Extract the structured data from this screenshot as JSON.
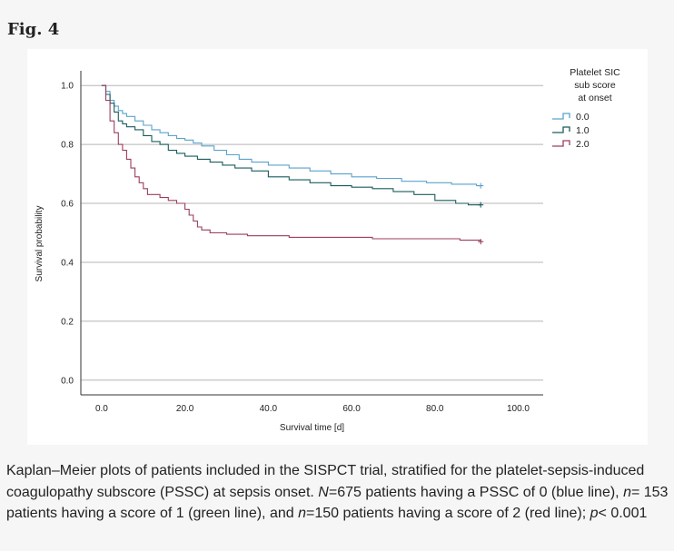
{
  "figure_label": "Fig. 4",
  "caption": {
    "t1": "Kaplan–Meier plots of patients included in the SISPCT trial, stratified for the platelet-sepsis-induced coagulopathy subscore (PSSC) at sepsis onset. ",
    "N1": "N",
    "t2": "=675 patients having a PSSC of 0 (blue line), ",
    "n2": "n",
    "t3": "= 153 patients having a score of 1 (green line), and ",
    "n3": "n",
    "t4": "=150 patients having a score of 2 (red line); ",
    "p": "p",
    "t5": "< 0.001"
  },
  "chart_data": {
    "type": "line",
    "step": true,
    "xlabel": "Survival time [d]",
    "ylabel": "Survival probability",
    "xlim": [
      -5,
      106
    ],
    "ylim": [
      -0.05,
      1.05
    ],
    "xticks": [
      "0.0",
      "20.0",
      "40.0",
      "60.0",
      "80.0",
      "100.0"
    ],
    "xtick_values": [
      0,
      20,
      40,
      60,
      80,
      100
    ],
    "yticks": [
      "0.0",
      "0.2",
      "0.4",
      "0.6",
      "0.8",
      "1.0"
    ],
    "ytick_values": [
      0,
      0.2,
      0.4,
      0.6,
      0.8,
      1.0
    ],
    "grid": "horizontal",
    "legend": {
      "title_lines": [
        "Platelet SIC",
        "sub score",
        "at onset"
      ],
      "placement": "top-right",
      "entries": [
        "0.0",
        "1.0",
        "2.0"
      ]
    },
    "series": [
      {
        "name": "0.0",
        "color": "#5aa2cc",
        "x": [
          0,
          1,
          2,
          3,
          4,
          5,
          6,
          8,
          10,
          12,
          14,
          16,
          18,
          20,
          22,
          24,
          27,
          30,
          33,
          36,
          40,
          45,
          50,
          55,
          60,
          66,
          72,
          78,
          84,
          90,
          91
        ],
        "y": [
          1.0,
          0.98,
          0.95,
          0.93,
          0.915,
          0.905,
          0.895,
          0.88,
          0.865,
          0.85,
          0.84,
          0.83,
          0.82,
          0.815,
          0.805,
          0.795,
          0.78,
          0.765,
          0.75,
          0.74,
          0.73,
          0.72,
          0.71,
          0.7,
          0.69,
          0.685,
          0.675,
          0.67,
          0.665,
          0.66,
          0.66
        ]
      },
      {
        "name": "1.0",
        "color": "#1a5c5c",
        "x": [
          0,
          1,
          2,
          3,
          4,
          5,
          6,
          8,
          10,
          12,
          14,
          16,
          18,
          20,
          23,
          26,
          29,
          32,
          36,
          40,
          45,
          50,
          55,
          60,
          65,
          70,
          75,
          80,
          85,
          88,
          91
        ],
        "y": [
          1.0,
          0.97,
          0.94,
          0.91,
          0.88,
          0.87,
          0.86,
          0.85,
          0.83,
          0.81,
          0.8,
          0.78,
          0.77,
          0.76,
          0.75,
          0.74,
          0.73,
          0.72,
          0.71,
          0.69,
          0.68,
          0.67,
          0.66,
          0.655,
          0.65,
          0.64,
          0.63,
          0.61,
          0.6,
          0.595,
          0.595
        ]
      },
      {
        "name": "2.0",
        "color": "#9c3d5e",
        "x": [
          0,
          1,
          2,
          3,
          4,
          5,
          6,
          7,
          8,
          9,
          10,
          11,
          12,
          14,
          16,
          18,
          20,
          21,
          22,
          23,
          24,
          26,
          30,
          35,
          45,
          65,
          80,
          86,
          91
        ],
        "y": [
          1.0,
          0.95,
          0.88,
          0.84,
          0.8,
          0.78,
          0.75,
          0.72,
          0.69,
          0.67,
          0.65,
          0.63,
          0.63,
          0.62,
          0.61,
          0.6,
          0.58,
          0.56,
          0.54,
          0.52,
          0.51,
          0.5,
          0.495,
          0.49,
          0.485,
          0.48,
          0.48,
          0.475,
          0.47
        ]
      }
    ]
  }
}
